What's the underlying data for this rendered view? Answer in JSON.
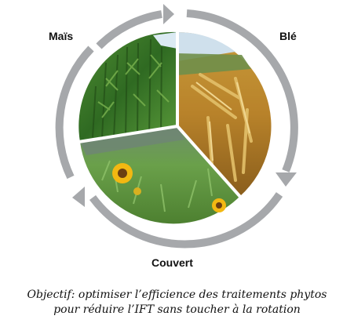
{
  "diagram": {
    "segments": [
      {
        "id": "mais",
        "label": "Maïs"
      },
      {
        "id": "ble",
        "label": "Blé"
      },
      {
        "id": "couvert",
        "label": "Couvert"
      }
    ]
  },
  "caption": {
    "line1": "Objectif: optimiser l’efficience des traitements phytos",
    "line2": "pour réduire l’IFT sans toucher à la rotation"
  },
  "colors": {
    "arrow": "#a6a8ab",
    "corn": "#3f7a2a",
    "wheat": "#c9982f",
    "cover": "#5f9440",
    "sunflower": "#f2b812"
  }
}
